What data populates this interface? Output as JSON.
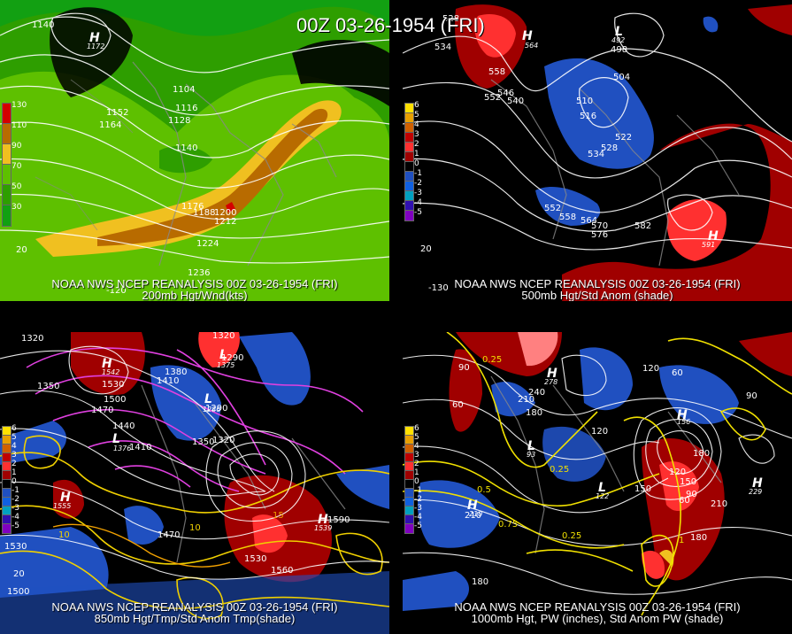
{
  "title": "00Z 03-26-1954 (FRI)",
  "panels": {
    "p200": {
      "footer1": "NOAA NWS NCEP REANALYSIS 00Z 03-26-1954 (FRI)",
      "footer2": "200mb Hgt/Wnd(kts)",
      "legend": [
        "130",
        "110",
        "90",
        "70",
        "50",
        "30"
      ],
      "legend_colors": [
        "#d40000",
        "#b86b00",
        "#f0c020",
        "#5ec000",
        "#2e9e00",
        "#12a012"
      ],
      "contour_labels": [
        "1140",
        "1104",
        "1116",
        "1128",
        "1152",
        "1164",
        "1140",
        "1176",
        "1188",
        "1200",
        "1212",
        "1224",
        "1236",
        "20",
        "-120"
      ],
      "highs": [
        {
          "letter": "H",
          "value": "1172"
        }
      ]
    },
    "p500": {
      "footer1": "NOAA NWS NCEP REANALYSIS 00Z 03-26-1954 (FRI)",
      "footer2": "500mb Hgt/Std Anom (shade)",
      "legend": [
        "6",
        "5",
        "4",
        "3",
        "2",
        "1",
        "0",
        "-1",
        "-2",
        "-3",
        "-4",
        "-5"
      ],
      "legend_colors": [
        "#ffe000",
        "#e8a000",
        "#d06000",
        "#c00000",
        "#ff3030",
        "#a00000",
        "#000000",
        "#2050c0",
        "#1060e0",
        "#00a0c0",
        "#3010b0",
        "#8000c0"
      ],
      "contour_labels": [
        "528",
        "534",
        "558",
        "546",
        "552",
        "540",
        "504",
        "498",
        "510",
        "516",
        "522",
        "528",
        "534",
        "552",
        "558",
        "564",
        "570",
        "576",
        "582",
        "-130",
        "20"
      ],
      "highs": [
        {
          "letter": "H",
          "value": "564"
        },
        {
          "letter": "H",
          "value": "591"
        }
      ],
      "lows": [
        {
          "letter": "L",
          "value": "492"
        }
      ]
    },
    "p850": {
      "footer1": "NOAA NWS NCEP REANALYSIS 00Z 03-26-1954 (FRI)",
      "footer2": "850mb Hgt/Tmp/Std Anom Tmp(shade)",
      "legend": [
        "6",
        "5",
        "4",
        "3",
        "2",
        "1",
        "0",
        "-1",
        "-2",
        "-3",
        "-4",
        "-5"
      ],
      "contour_labels": [
        "1320",
        "1290",
        "1350",
        "1530",
        "1500",
        "1470",
        "1440",
        "1410",
        "1380",
        "1410",
        "1290",
        "1290",
        "1350",
        "1320",
        "1470",
        "1530",
        "1560",
        "1590",
        "10",
        "15",
        "10",
        "20",
        "1500",
        "1530"
      ],
      "highs": [
        {
          "letter": "H",
          "value": "1542"
        },
        {
          "letter": "H",
          "value": "1555"
        },
        {
          "letter": "H",
          "value": "1539"
        }
      ],
      "lows": [
        {
          "letter": "L",
          "value": "1286"
        },
        {
          "letter": "L",
          "value": "1375"
        },
        {
          "letter": "L",
          "value": "1376"
        }
      ]
    },
    "p1000": {
      "footer1": "NOAA NWS NCEP REANALYSIS 00Z 03-26-1954 (FRI)",
      "footer2": "1000mb Hgt, PW (inches), Std Anom PW (shade)",
      "legend": [
        "6",
        "5",
        "4",
        "3",
        "2",
        "1",
        "0",
        "-1",
        "-2",
        "-3",
        "-4",
        "-5"
      ],
      "contour_labels": [
        "90",
        "60",
        "0.25",
        "210",
        "240",
        "180",
        "120",
        "60",
        "90",
        "120",
        "150",
        "180",
        "0.25",
        "0.5",
        "0.75",
        "210",
        "180",
        "150",
        "120",
        "90",
        "60",
        "210",
        "180",
        "0.25",
        "1"
      ],
      "highs": [
        {
          "letter": "H",
          "value": "278"
        },
        {
          "letter": "H",
          "value": "210"
        },
        {
          "letter": "H",
          "value": "229"
        },
        {
          "letter": "H",
          "value": "156"
        }
      ],
      "lows": [
        {
          "letter": "L",
          "value": "93"
        },
        {
          "letter": "L",
          "value": "122"
        }
      ]
    }
  }
}
